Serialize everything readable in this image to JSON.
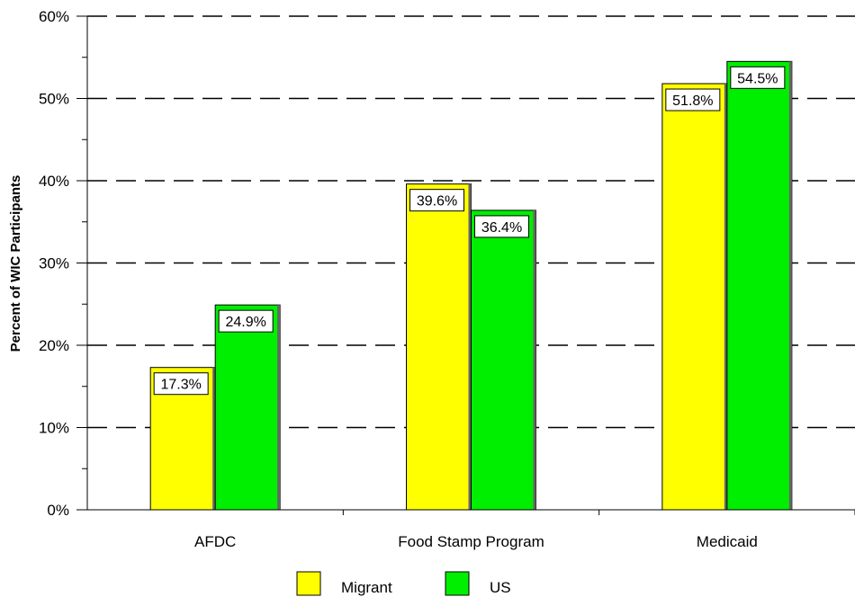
{
  "chart_data": {
    "type": "bar",
    "categories": [
      "AFDC",
      "Food Stamp Program",
      "Medicaid"
    ],
    "series": [
      {
        "name": "Migrant",
        "values": [
          17.3,
          39.6,
          51.8
        ],
        "labels": [
          "17.3%",
          "39.6%",
          "51.8%"
        ],
        "color": "#ffff00"
      },
      {
        "name": "US",
        "values": [
          24.9,
          36.4,
          54.5
        ],
        "labels": [
          "24.9%",
          "36.4%",
          "54.5%"
        ],
        "color": "#00ee00"
      }
    ],
    "title": "",
    "xlabel": "",
    "ylabel": "Percent of WIC Participants",
    "ylim": [
      0,
      60
    ],
    "yticks": [
      "0%",
      "10%",
      "20%",
      "30%",
      "40%",
      "50%",
      "60%"
    ],
    "grid": "dashed horizontal",
    "legend_position": "bottom"
  }
}
